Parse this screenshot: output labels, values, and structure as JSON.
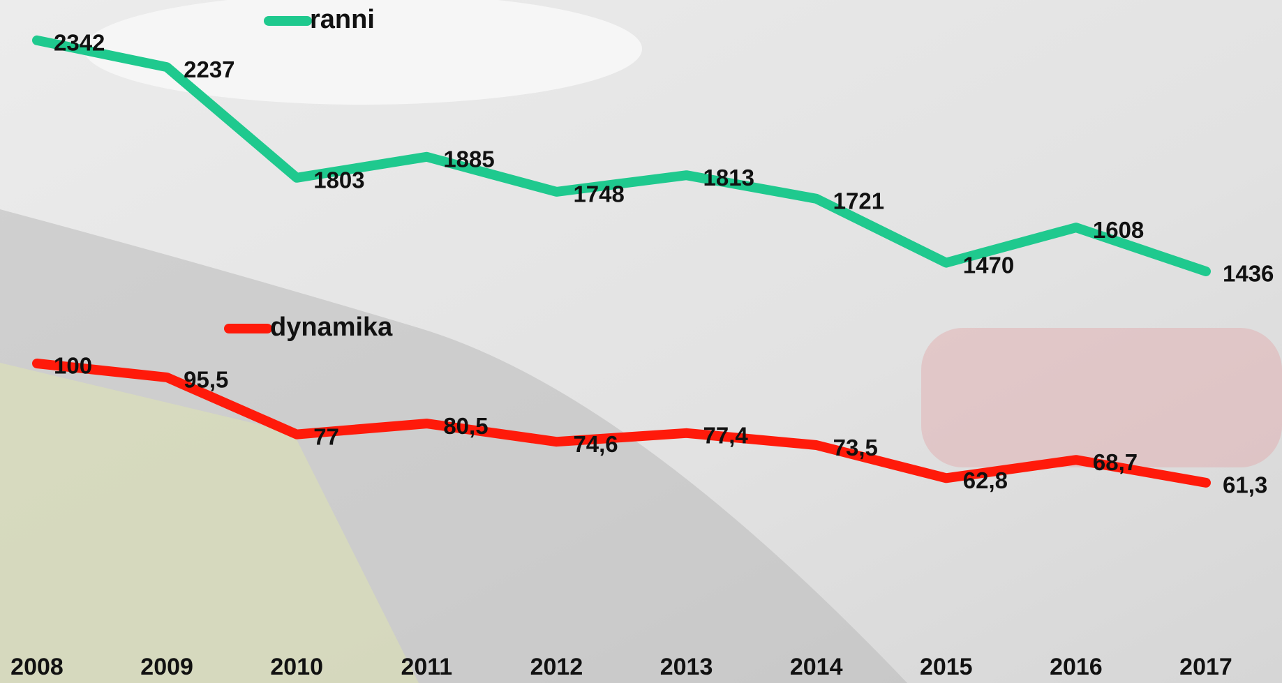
{
  "chart_data": {
    "type": "line",
    "categories": [
      "2008",
      "2009",
      "2010",
      "2011",
      "2012",
      "2013",
      "2014",
      "2015",
      "2016",
      "2017"
    ],
    "series": [
      {
        "name": "ranni",
        "color": "#1fc98e",
        "values": [
          2342,
          2237,
          1803,
          1885,
          1748,
          1813,
          1721,
          1470,
          1608,
          1436
        ]
      },
      {
        "name": "dynamika",
        "color": "#ff1a0a",
        "axis": "y2",
        "values": [
          100,
          95.5,
          77,
          80.5,
          74.6,
          77.4,
          73.5,
          62.8,
          68.7,
          61.3
        ],
        "value_labels": [
          "100",
          "95,5",
          "77",
          "80,5",
          "74,6",
          "77,4",
          "73,5",
          "62,8",
          "68,7",
          "61,3"
        ]
      }
    ],
    "ylim": [
      0,
      2500
    ],
    "y2lim": [
      11,
      218
    ]
  }
}
